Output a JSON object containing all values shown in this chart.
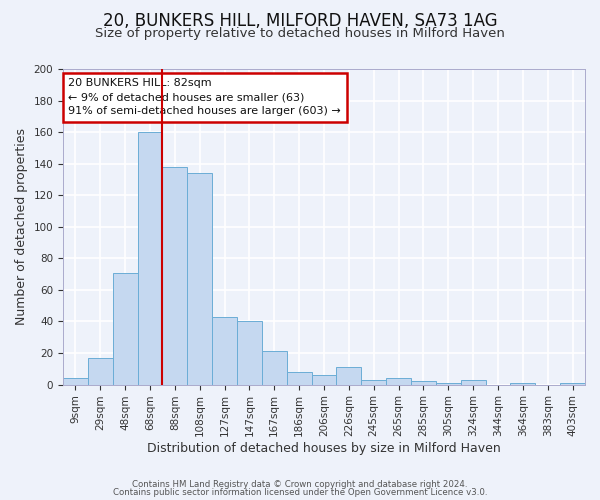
{
  "title": "20, BUNKERS HILL, MILFORD HAVEN, SA73 1AG",
  "subtitle": "Size of property relative to detached houses in Milford Haven",
  "xlabel": "Distribution of detached houses by size in Milford Haven",
  "ylabel": "Number of detached properties",
  "bar_labels": [
    "9sqm",
    "29sqm",
    "48sqm",
    "68sqm",
    "88sqm",
    "108sqm",
    "127sqm",
    "147sqm",
    "167sqm",
    "186sqm",
    "206sqm",
    "226sqm",
    "245sqm",
    "265sqm",
    "285sqm",
    "305sqm",
    "324sqm",
    "344sqm",
    "364sqm",
    "383sqm",
    "403sqm"
  ],
  "bar_values": [
    4,
    17,
    71,
    160,
    138,
    134,
    43,
    40,
    21,
    8,
    6,
    11,
    3,
    4,
    2,
    1,
    3,
    0,
    1,
    0,
    1
  ],
  "bar_color": "#c5d8f0",
  "bar_edge_color": "#6badd6",
  "vline_x_index": 3,
  "vline_color": "#cc0000",
  "ylim": [
    0,
    200
  ],
  "yticks": [
    0,
    20,
    40,
    60,
    80,
    100,
    120,
    140,
    160,
    180,
    200
  ],
  "annotation_title": "20 BUNKERS HILL: 82sqm",
  "annotation_line1": "← 9% of detached houses are smaller (63)",
  "annotation_line2": "91% of semi-detached houses are larger (603) →",
  "annotation_box_color": "#cc0000",
  "footer1": "Contains HM Land Registry data © Crown copyright and database right 2024.",
  "footer2": "Contains public sector information licensed under the Open Government Licence v3.0.",
  "background_color": "#eef2fa",
  "grid_color": "#ffffff",
  "title_fontsize": 12,
  "subtitle_fontsize": 9.5,
  "axis_label_fontsize": 9,
  "tick_fontsize": 7.5
}
